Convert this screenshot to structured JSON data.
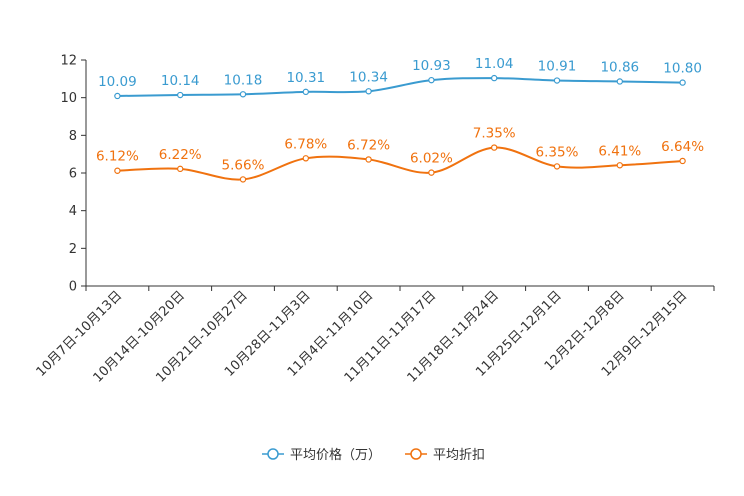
{
  "chart_data": {
    "type": "line",
    "categories": [
      "10月7日-10月13日",
      "10月14日-10月20日",
      "10月21日-10月27日",
      "10月28日-11月3日",
      "11月4日-11月10日",
      "11月11日-11月17日",
      "11月18日-11月24日",
      "11月25日-12月1日",
      "12月2日-12月8日",
      "12月9日-12月15日"
    ],
    "series": [
      {
        "name": "平均价格（万）",
        "color": "#3a9bd0",
        "values": [
          10.09,
          10.14,
          10.18,
          10.31,
          10.34,
          10.93,
          11.04,
          10.91,
          10.86,
          10.8
        ],
        "labels": [
          "10.09",
          "10.14",
          "10.18",
          "10.31",
          "10.34",
          "10.93",
          "11.04",
          "10.91",
          "10.86",
          "10.80"
        ]
      },
      {
        "name": "平均折扣",
        "color": "#f0720f",
        "values": [
          6.12,
          6.22,
          5.66,
          6.78,
          6.72,
          6.02,
          7.35,
          6.35,
          6.41,
          6.64
        ],
        "labels": [
          "6.12%",
          "6.22%",
          "5.66%",
          "6.78%",
          "6.72%",
          "6.02%",
          "7.35%",
          "6.35%",
          "6.41%",
          "6.64%"
        ]
      }
    ],
    "yticks": [
      "0",
      "2",
      "4",
      "6",
      "8",
      "10",
      "12"
    ],
    "ylim": [
      0,
      12
    ],
    "title": "",
    "xlabel": "",
    "ylabel": "",
    "legend": "bottom-center"
  }
}
